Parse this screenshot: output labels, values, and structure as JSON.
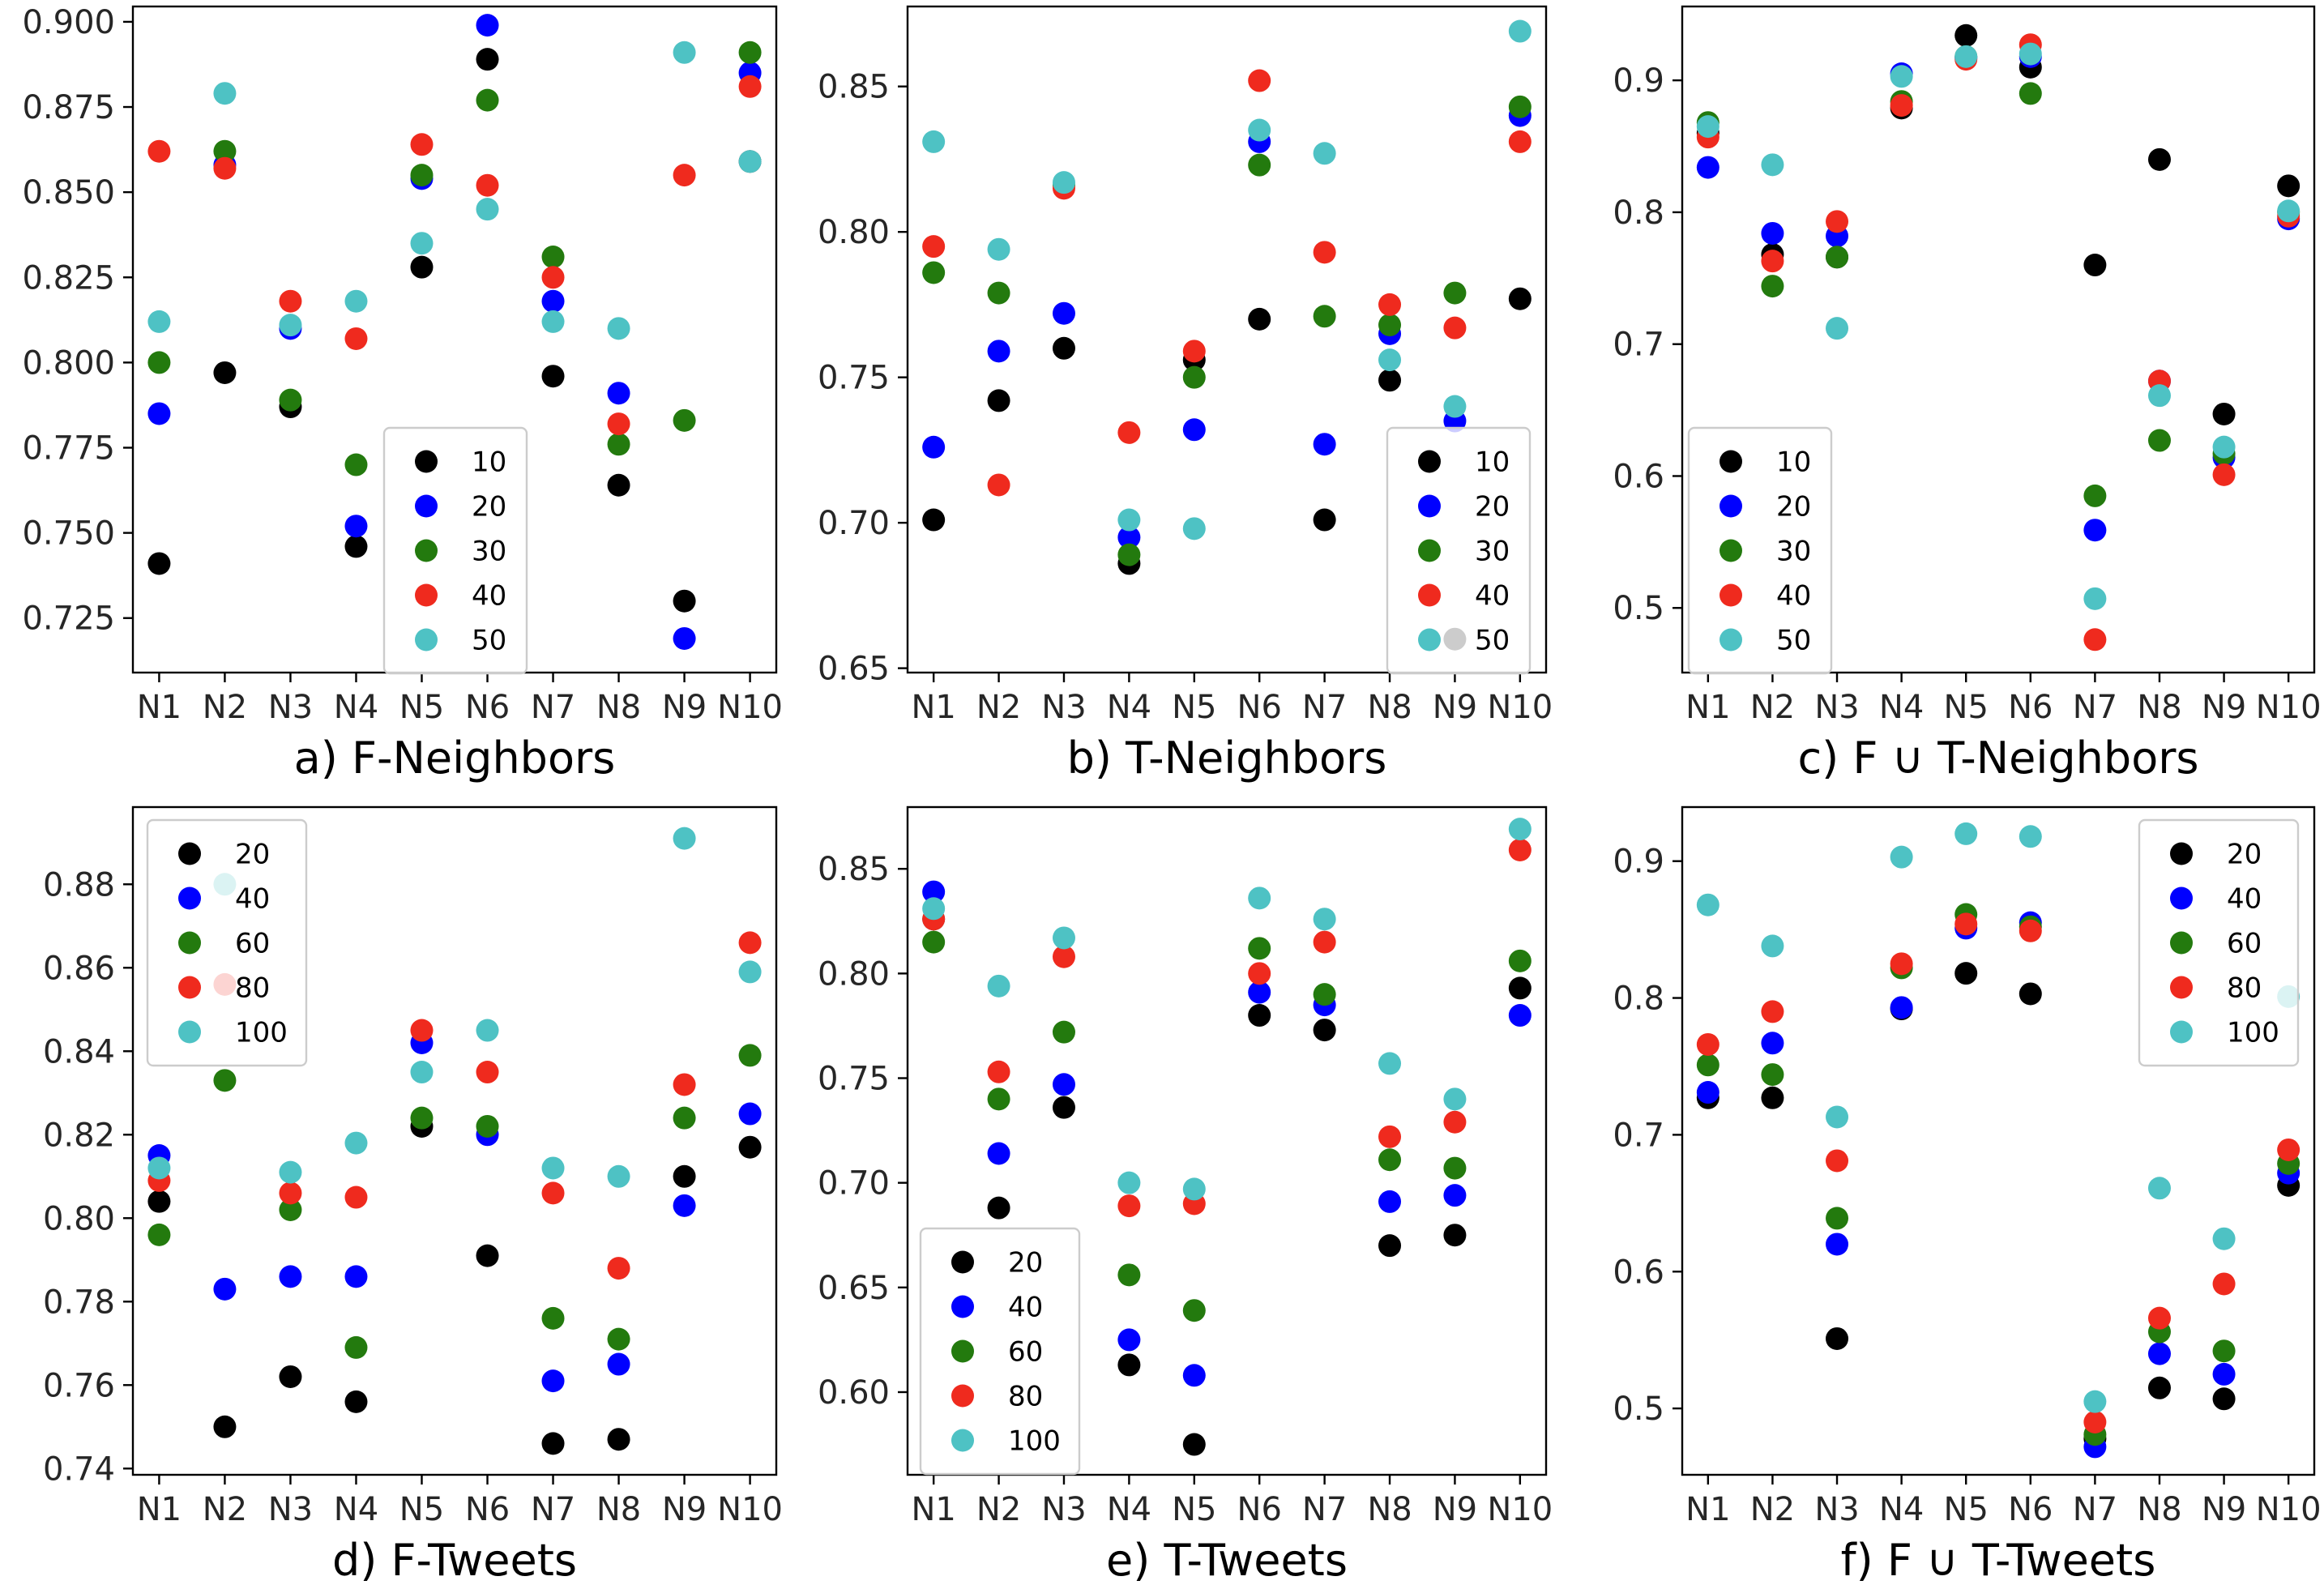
{
  "figure": {
    "colors": {
      "black": "#000000",
      "blue": "#0000ff",
      "green": "#237a0e",
      "red": "#ef2a1e",
      "cyan": "#4ec2c4"
    }
  },
  "chart_data": [
    {
      "type": "scatter",
      "id": "a",
      "title": "a) F-Neighbors",
      "xlabel": "",
      "ylabel": "",
      "categories": [
        "N1",
        "N2",
        "N3",
        "N4",
        "N5",
        "N6",
        "N7",
        "N8",
        "N9",
        "N10"
      ],
      "ylim": [
        0.709,
        0.9045
      ],
      "yticks": [
        0.725,
        0.75,
        0.775,
        0.8,
        0.825,
        0.85,
        0.875,
        0.9
      ],
      "ytick_labels": [
        "0.725",
        "0.750",
        "0.775",
        "0.800",
        "0.825",
        "0.850",
        "0.875",
        "0.900"
      ],
      "legend": {
        "position": "lower-center"
      },
      "series": [
        {
          "name": "10",
          "color": "#000000",
          "values": [
            0.741,
            0.797,
            0.787,
            0.746,
            0.828,
            0.889,
            0.796,
            0.764,
            0.73,
            0.859
          ]
        },
        {
          "name": "20",
          "color": "#0000ff",
          "values": [
            0.785,
            0.858,
            0.81,
            0.752,
            0.854,
            0.899,
            0.818,
            0.791,
            0.719,
            0.885
          ]
        },
        {
          "name": "30",
          "color": "#237a0e",
          "values": [
            0.8,
            0.862,
            0.789,
            0.77,
            0.855,
            0.877,
            0.831,
            0.776,
            0.783,
            0.891
          ]
        },
        {
          "name": "40",
          "color": "#ef2a1e",
          "values": [
            0.862,
            0.857,
            0.818,
            0.807,
            0.864,
            0.852,
            0.825,
            0.782,
            0.855,
            0.881
          ]
        },
        {
          "name": "50",
          "color": "#4ec2c4",
          "values": [
            0.812,
            0.879,
            0.811,
            0.818,
            0.835,
            0.845,
            0.812,
            0.81,
            0.891,
            0.859
          ]
        }
      ]
    },
    {
      "type": "scatter",
      "id": "b",
      "title": "b) T-Neighbors",
      "xlabel": "",
      "ylabel": "",
      "categories": [
        "N1",
        "N2",
        "N3",
        "N4",
        "N5",
        "N6",
        "N7",
        "N8",
        "N9",
        "N10"
      ],
      "ylim": [
        0.6485,
        0.8775
      ],
      "yticks": [
        0.65,
        0.7,
        0.75,
        0.8,
        0.85
      ],
      "ytick_labels": [
        "0.65",
        "0.70",
        "0.75",
        "0.80",
        "0.85"
      ],
      "legend": {
        "position": "lower-right"
      },
      "series": [
        {
          "name": "10",
          "color": "#000000",
          "values": [
            0.701,
            0.742,
            0.76,
            0.686,
            0.756,
            0.77,
            0.701,
            0.749,
            0.66,
            0.777
          ]
        },
        {
          "name": "20",
          "color": "#0000ff",
          "values": [
            0.726,
            0.759,
            0.772,
            0.695,
            0.732,
            0.831,
            0.727,
            0.765,
            0.735,
            0.84
          ]
        },
        {
          "name": "30",
          "color": "#237a0e",
          "values": [
            0.786,
            0.779,
            0.816,
            0.689,
            0.75,
            0.823,
            0.771,
            0.768,
            0.779,
            0.843
          ]
        },
        {
          "name": "40",
          "color": "#ef2a1e",
          "values": [
            0.795,
            0.713,
            0.815,
            0.731,
            0.759,
            0.852,
            0.793,
            0.775,
            0.767,
            0.831
          ]
        },
        {
          "name": "50",
          "color": "#4ec2c4",
          "values": [
            0.831,
            0.794,
            0.817,
            0.701,
            0.698,
            0.835,
            0.827,
            0.756,
            0.74,
            0.869
          ]
        }
      ]
    },
    {
      "type": "scatter",
      "id": "c",
      "title": "c) F ∪ T-Neighbors",
      "xlabel": "",
      "ylabel": "",
      "categories": [
        "N1",
        "N2",
        "N3",
        "N4",
        "N5",
        "N6",
        "N7",
        "N8",
        "N9",
        "N10"
      ],
      "ylim": [
        0.451,
        0.956
      ],
      "yticks": [
        0.5,
        0.6,
        0.7,
        0.8,
        0.9
      ],
      "ytick_labels": [
        "0.5",
        "0.6",
        "0.7",
        "0.8",
        "0.9"
      ],
      "legend": {
        "position": "lower-left"
      },
      "series": [
        {
          "name": "10",
          "color": "#000000",
          "values": [
            0.86,
            0.768,
            0.766,
            0.879,
            0.934,
            0.91,
            0.76,
            0.84,
            0.647,
            0.82
          ]
        },
        {
          "name": "20",
          "color": "#0000ff",
          "values": [
            0.834,
            0.784,
            0.782,
            0.905,
            0.917,
            0.918,
            0.559,
            0.672,
            0.614,
            0.795
          ]
        },
        {
          "name": "30",
          "color": "#237a0e",
          "values": [
            0.868,
            0.744,
            0.766,
            0.884,
            0.918,
            0.89,
            0.585,
            0.627,
            0.617,
            0.8
          ]
        },
        {
          "name": "40",
          "color": "#ef2a1e",
          "values": [
            0.857,
            0.763,
            0.793,
            0.881,
            0.916,
            0.927,
            0.476,
            0.672,
            0.601,
            0.797
          ]
        },
        {
          "name": "50",
          "color": "#4ec2c4",
          "values": [
            0.865,
            0.836,
            0.712,
            0.903,
            0.918,
            0.92,
            0.507,
            0.661,
            0.622,
            0.801
          ]
        }
      ]
    },
    {
      "type": "scatter",
      "id": "d",
      "title": "d) F-Tweets",
      "xlabel": "",
      "ylabel": "",
      "categories": [
        "N1",
        "N2",
        "N3",
        "N4",
        "N5",
        "N6",
        "N7",
        "N8",
        "N9",
        "N10"
      ],
      "ylim": [
        0.7385,
        0.8985
      ],
      "yticks": [
        0.74,
        0.76,
        0.78,
        0.8,
        0.82,
        0.84,
        0.86,
        0.88
      ],
      "ytick_labels": [
        "0.74",
        "0.76",
        "0.78",
        "0.80",
        "0.82",
        "0.84",
        "0.86",
        "0.88"
      ],
      "legend": {
        "position": "upper-left"
      },
      "series": [
        {
          "name": "20",
          "color": "#000000",
          "values": [
            0.804,
            0.75,
            0.762,
            0.756,
            0.822,
            0.791,
            0.746,
            0.747,
            0.81,
            0.817
          ]
        },
        {
          "name": "40",
          "color": "#0000ff",
          "values": [
            0.815,
            0.783,
            0.786,
            0.786,
            0.842,
            0.82,
            0.761,
            0.765,
            0.803,
            0.825
          ]
        },
        {
          "name": "60",
          "color": "#237a0e",
          "values": [
            0.796,
            0.833,
            0.802,
            0.769,
            0.824,
            0.822,
            0.776,
            0.771,
            0.824,
            0.839
          ]
        },
        {
          "name": "80",
          "color": "#ef2a1e",
          "values": [
            0.809,
            0.856,
            0.806,
            0.805,
            0.845,
            0.835,
            0.806,
            0.788,
            0.832,
            0.866
          ]
        },
        {
          "name": "100",
          "color": "#4ec2c4",
          "values": [
            0.812,
            0.88,
            0.811,
            0.818,
            0.835,
            0.845,
            0.812,
            0.81,
            0.891,
            0.859
          ]
        }
      ]
    },
    {
      "type": "scatter",
      "id": "e",
      "title": "e) T-Tweets",
      "xlabel": "",
      "ylabel": "",
      "categories": [
        "N1",
        "N2",
        "N3",
        "N4",
        "N5",
        "N6",
        "N7",
        "N8",
        "N9",
        "N10"
      ],
      "ylim": [
        0.5605,
        0.8795
      ],
      "yticks": [
        0.6,
        0.65,
        0.7,
        0.75,
        0.8,
        0.85
      ],
      "ytick_labels": [
        "0.60",
        "0.65",
        "0.70",
        "0.75",
        "0.80",
        "0.85"
      ],
      "legend": {
        "position": "lower-left"
      },
      "series": [
        {
          "name": "20",
          "color": "#000000",
          "values": [
            0.826,
            0.688,
            0.736,
            0.613,
            0.575,
            0.78,
            0.773,
            0.67,
            0.675,
            0.793
          ]
        },
        {
          "name": "40",
          "color": "#0000ff",
          "values": [
            0.839,
            0.714,
            0.747,
            0.625,
            0.608,
            0.791,
            0.785,
            0.691,
            0.694,
            0.78
          ]
        },
        {
          "name": "60",
          "color": "#237a0e",
          "values": [
            0.815,
            0.74,
            0.772,
            0.656,
            0.639,
            0.812,
            0.79,
            0.711,
            0.707,
            0.806
          ]
        },
        {
          "name": "80",
          "color": "#ef2a1e",
          "values": [
            0.826,
            0.753,
            0.808,
            0.689,
            0.69,
            0.8,
            0.815,
            0.722,
            0.729,
            0.859
          ]
        },
        {
          "name": "100",
          "color": "#4ec2c4",
          "values": [
            0.831,
            0.794,
            0.817,
            0.7,
            0.697,
            0.836,
            0.826,
            0.757,
            0.74,
            0.869
          ]
        }
      ]
    },
    {
      "type": "scatter",
      "id": "f",
      "title": "f) F ∪ T-Tweets",
      "xlabel": "",
      "ylabel": "",
      "categories": [
        "N1",
        "N2",
        "N3",
        "N4",
        "N5",
        "N6",
        "N7",
        "N8",
        "N9",
        "N10"
      ],
      "ylim": [
        0.4515,
        0.9395
      ],
      "yticks": [
        0.5,
        0.6,
        0.7,
        0.8,
        0.9
      ],
      "ytick_labels": [
        "0.5",
        "0.6",
        "0.7",
        "0.8",
        "0.9"
      ],
      "legend": {
        "position": "upper-right"
      },
      "series": [
        {
          "name": "20",
          "color": "#000000",
          "values": [
            0.727,
            0.727,
            0.551,
            0.792,
            0.818,
            0.803,
            0.478,
            0.515,
            0.507,
            0.663
          ]
        },
        {
          "name": "40",
          "color": "#0000ff",
          "values": [
            0.731,
            0.767,
            0.62,
            0.793,
            0.851,
            0.855,
            0.472,
            0.54,
            0.525,
            0.672
          ]
        },
        {
          "name": "60",
          "color": "#237a0e",
          "values": [
            0.751,
            0.744,
            0.639,
            0.822,
            0.861,
            0.852,
            0.481,
            0.556,
            0.542,
            0.679
          ]
        },
        {
          "name": "80",
          "color": "#ef2a1e",
          "values": [
            0.766,
            0.79,
            0.681,
            0.825,
            0.854,
            0.849,
            0.49,
            0.566,
            0.591,
            0.689
          ]
        },
        {
          "name": "100",
          "color": "#4ec2c4",
          "values": [
            0.868,
            0.838,
            0.713,
            0.903,
            0.92,
            0.918,
            0.505,
            0.661,
            0.624,
            0.801
          ]
        }
      ]
    }
  ]
}
